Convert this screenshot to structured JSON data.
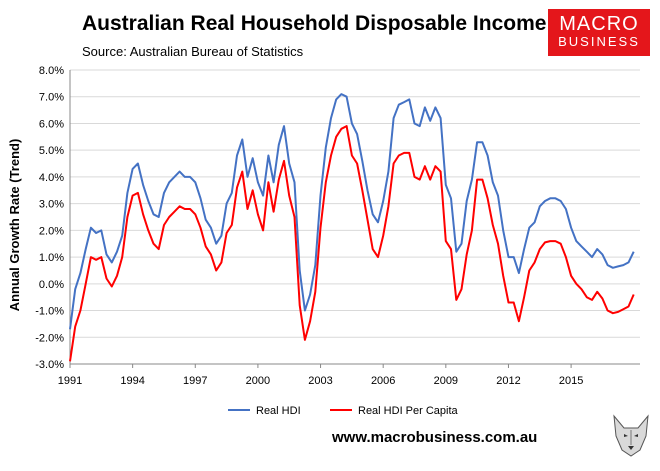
{
  "header": {
    "title": "Australian Real Household Disposable Income",
    "source": "Source: Australian Bureau of Statistics"
  },
  "brand": {
    "line1": "MACRO",
    "line2": "BUSINESS",
    "color": "#e4161b"
  },
  "footer": {
    "website": "www.macrobusiness.com.au"
  },
  "chart_data": {
    "type": "line",
    "ylabel": "Annual Growth Rate (Trend)",
    "xlabel": "",
    "ylim": [
      -3.0,
      8.0
    ],
    "xlim": [
      1991,
      2018.3
    ],
    "yticks": [
      "-3.0%",
      "-2.0%",
      "-1.0%",
      "0.0%",
      "1.0%",
      "2.0%",
      "3.0%",
      "4.0%",
      "5.0%",
      "6.0%",
      "7.0%",
      "8.0%"
    ],
    "xticks": [
      "1991",
      "1994",
      "1997",
      "2000",
      "2003",
      "2006",
      "2009",
      "2012",
      "2015"
    ],
    "grid": true,
    "legend_position": "bottom",
    "series": [
      {
        "name": "Real HDI",
        "color": "#4472c4",
        "x": [
          1991.0,
          1991.25,
          1991.5,
          1991.75,
          1992.0,
          1992.25,
          1992.5,
          1992.75,
          1993.0,
          1993.25,
          1993.5,
          1993.75,
          1994.0,
          1994.25,
          1994.5,
          1994.75,
          1995.0,
          1995.25,
          1995.5,
          1995.75,
          1996.0,
          1996.25,
          1996.5,
          1996.75,
          1997.0,
          1997.25,
          1997.5,
          1997.75,
          1998.0,
          1998.25,
          1998.5,
          1998.75,
          1999.0,
          1999.25,
          1999.5,
          1999.75,
          2000.0,
          2000.25,
          2000.5,
          2000.75,
          2001.0,
          2001.25,
          2001.5,
          2001.75,
          2002.0,
          2002.25,
          2002.5,
          2002.75,
          2003.0,
          2003.25,
          2003.5,
          2003.75,
          2004.0,
          2004.25,
          2004.5,
          2004.75,
          2005.0,
          2005.25,
          2005.5,
          2005.75,
          2006.0,
          2006.25,
          2006.5,
          2006.75,
          2007.0,
          2007.25,
          2007.5,
          2007.75,
          2008.0,
          2008.25,
          2008.5,
          2008.75,
          2009.0,
          2009.25,
          2009.5,
          2009.75,
          2010.0,
          2010.25,
          2010.5,
          2010.75,
          2011.0,
          2011.25,
          2011.5,
          2011.75,
          2012.0,
          2012.25,
          2012.5,
          2012.75,
          2013.0,
          2013.25,
          2013.5,
          2013.75,
          2014.0,
          2014.25,
          2014.5,
          2014.75,
          2015.0,
          2015.25,
          2015.5,
          2015.75,
          2016.0,
          2016.25,
          2016.5,
          2016.75,
          2017.0,
          2017.25,
          2017.5,
          2017.75,
          2018.0
        ],
        "values": [
          -1.7,
          -0.2,
          0.4,
          1.3,
          2.1,
          1.9,
          2.0,
          1.1,
          0.8,
          1.2,
          1.8,
          3.4,
          4.3,
          4.5,
          3.7,
          3.1,
          2.6,
          2.5,
          3.4,
          3.8,
          4.0,
          4.2,
          4.0,
          4.0,
          3.8,
          3.2,
          2.4,
          2.1,
          1.5,
          1.8,
          3.0,
          3.4,
          4.8,
          5.4,
          4.0,
          4.7,
          3.8,
          3.3,
          4.8,
          3.8,
          5.2,
          5.9,
          4.5,
          3.8,
          0.5,
          -1.0,
          -0.4,
          0.7,
          3.3,
          5.1,
          6.2,
          6.9,
          7.1,
          7.0,
          6.0,
          5.6,
          4.6,
          3.5,
          2.6,
          2.3,
          3.1,
          4.2,
          6.2,
          6.7,
          6.8,
          6.9,
          6.0,
          5.9,
          6.6,
          6.1,
          6.6,
          6.2,
          3.7,
          3.2,
          1.2,
          1.5,
          3.1,
          3.9,
          5.3,
          5.3,
          4.8,
          3.8,
          3.3,
          2.0,
          1.0,
          1.0,
          0.4,
          1.3,
          2.1,
          2.3,
          2.9,
          3.1,
          3.2,
          3.2,
          3.1,
          2.8,
          2.1,
          1.6,
          1.4,
          1.2,
          1.0,
          1.3,
          1.1,
          0.7,
          0.6,
          0.65,
          0.7,
          0.8,
          1.2
        ]
      },
      {
        "name": "Real HDI Per Capita",
        "color": "#ff0000",
        "x": [
          1991.0,
          1991.25,
          1991.5,
          1991.75,
          1992.0,
          1992.25,
          1992.5,
          1992.75,
          1993.0,
          1993.25,
          1993.5,
          1993.75,
          1994.0,
          1994.25,
          1994.5,
          1994.75,
          1995.0,
          1995.25,
          1995.5,
          1995.75,
          1996.0,
          1996.25,
          1996.5,
          1996.75,
          1997.0,
          1997.25,
          1997.5,
          1997.75,
          1998.0,
          1998.25,
          1998.5,
          1998.75,
          1999.0,
          1999.25,
          1999.5,
          1999.75,
          2000.0,
          2000.25,
          2000.5,
          2000.75,
          2001.0,
          2001.25,
          2001.5,
          2001.75,
          2002.0,
          2002.25,
          2002.5,
          2002.75,
          2003.0,
          2003.25,
          2003.5,
          2003.75,
          2004.0,
          2004.25,
          2004.5,
          2004.75,
          2005.0,
          2005.25,
          2005.5,
          2005.75,
          2006.0,
          2006.25,
          2006.5,
          2006.75,
          2007.0,
          2007.25,
          2007.5,
          2007.75,
          2008.0,
          2008.25,
          2008.5,
          2008.75,
          2009.0,
          2009.25,
          2009.5,
          2009.75,
          2010.0,
          2010.25,
          2010.5,
          2010.75,
          2011.0,
          2011.25,
          2011.5,
          2011.75,
          2012.0,
          2012.25,
          2012.5,
          2012.75,
          2013.0,
          2013.25,
          2013.5,
          2013.75,
          2014.0,
          2014.25,
          2014.5,
          2014.75,
          2015.0,
          2015.25,
          2015.5,
          2015.75,
          2016.0,
          2016.25,
          2016.5,
          2016.75,
          2017.0,
          2017.25,
          2017.5,
          2017.75,
          2018.0
        ],
        "values": [
          -2.9,
          -1.6,
          -1.0,
          0.0,
          1.0,
          0.9,
          1.0,
          0.2,
          -0.1,
          0.3,
          1.0,
          2.5,
          3.3,
          3.4,
          2.6,
          2.0,
          1.5,
          1.3,
          2.2,
          2.5,
          2.7,
          2.9,
          2.8,
          2.8,
          2.6,
          2.1,
          1.4,
          1.1,
          0.5,
          0.8,
          1.9,
          2.2,
          3.6,
          4.2,
          2.8,
          3.5,
          2.6,
          2.0,
          3.8,
          2.7,
          3.9,
          4.6,
          3.3,
          2.5,
          -0.8,
          -2.1,
          -1.4,
          -0.3,
          2.1,
          3.8,
          4.8,
          5.5,
          5.8,
          5.9,
          4.8,
          4.5,
          3.5,
          2.4,
          1.3,
          1.0,
          1.8,
          2.9,
          4.5,
          4.8,
          4.9,
          4.9,
          4.0,
          3.9,
          4.4,
          3.9,
          4.4,
          4.2,
          1.6,
          1.3,
          -0.6,
          -0.2,
          1.1,
          2.0,
          3.9,
          3.9,
          3.2,
          2.2,
          1.5,
          0.3,
          -0.7,
          -0.7,
          -1.4,
          -0.5,
          0.5,
          0.8,
          1.3,
          1.55,
          1.6,
          1.6,
          1.5,
          1.0,
          0.3,
          0.0,
          -0.2,
          -0.5,
          -0.6,
          -0.3,
          -0.55,
          -1.0,
          -1.1,
          -1.05,
          -0.95,
          -0.85,
          -0.4
        ]
      }
    ]
  }
}
